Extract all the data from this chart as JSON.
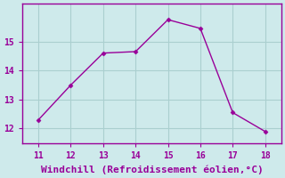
{
  "x": [
    11,
    12,
    13,
    14,
    15,
    16,
    17,
    18
  ],
  "y": [
    12.3,
    13.5,
    14.6,
    14.65,
    15.75,
    15.45,
    12.55,
    11.9
  ],
  "line_color": "#990099",
  "marker": "D",
  "marker_size": 2.5,
  "bg_color": "#ceeaeb",
  "grid_color": "#aacfcf",
  "xlabel": "Windchill (Refroidissement éolien,°C)",
  "xlabel_color": "#990099",
  "tick_color": "#990099",
  "spine_color": "#990099",
  "xlim": [
    10.5,
    18.5
  ],
  "ylim": [
    11.5,
    16.3
  ],
  "xticks": [
    11,
    12,
    13,
    14,
    15,
    16,
    17,
    18
  ],
  "yticks": [
    12,
    13,
    14,
    15
  ],
  "xlabel_fontsize": 8
}
